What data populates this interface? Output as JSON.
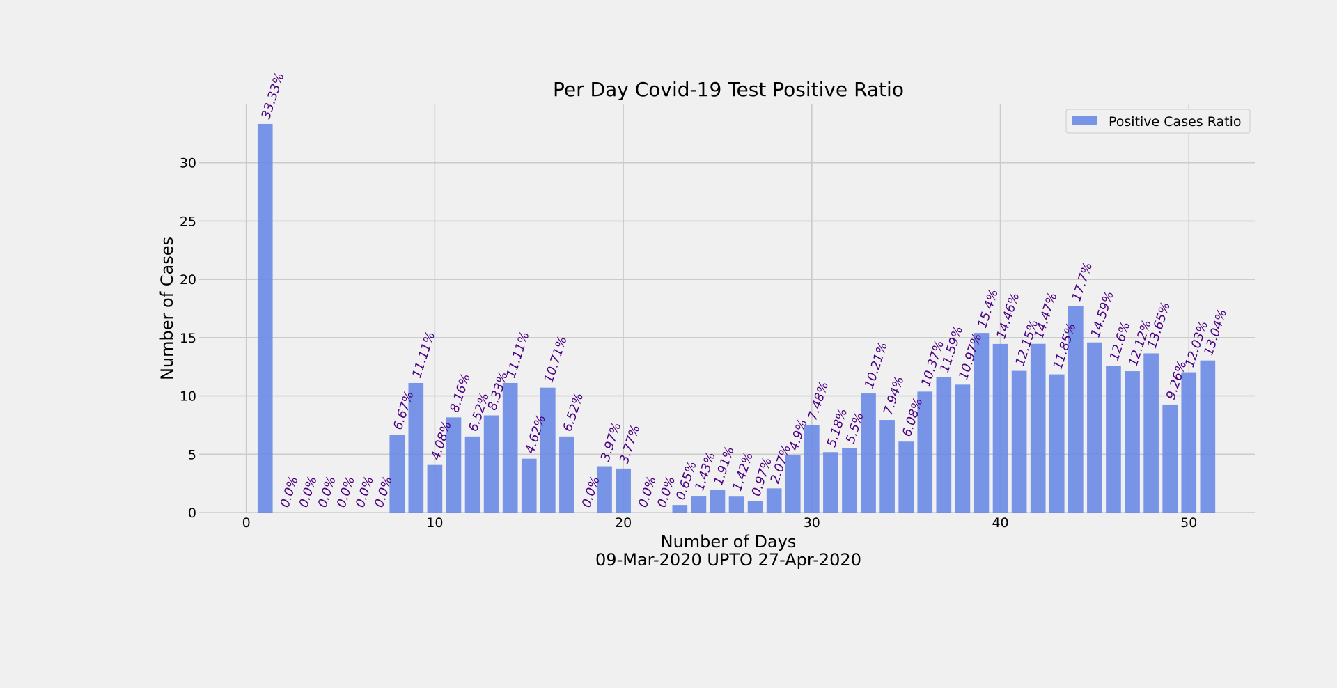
{
  "chart_data": {
    "type": "bar",
    "title": "Per Day Covid-19 Test Positive Ratio",
    "xlabel": "Number of Days",
    "xlabel_sub": "09-Mar-2020 UPTO 27-Apr-2020",
    "ylabel": "Number of Cases",
    "xlim": [
      -2.5,
      53.5
    ],
    "ylim": [
      0,
      35
    ],
    "xticks": [
      0,
      10,
      20,
      30,
      40,
      50
    ],
    "yticks": [
      0,
      5,
      10,
      15,
      20,
      25,
      30
    ],
    "grid": true,
    "legend_position": "top-right",
    "series": [
      {
        "name": "Positive Cases Ratio",
        "color": "#6a8ae6",
        "x": [
          1,
          2,
          3,
          4,
          5,
          6,
          7,
          8,
          9,
          10,
          11,
          12,
          13,
          14,
          15,
          16,
          17,
          18,
          19,
          20,
          21,
          22,
          23,
          24,
          25,
          26,
          27,
          28,
          29,
          30,
          31,
          32,
          33,
          34,
          35,
          36,
          37,
          38,
          39,
          40,
          41,
          42,
          43,
          44,
          45,
          46,
          47,
          48,
          49,
          50,
          51
        ],
        "values": [
          33.33,
          0.0,
          0.0,
          0.0,
          0.0,
          0.0,
          0.0,
          6.67,
          11.11,
          4.08,
          8.16,
          6.52,
          8.33,
          11.11,
          4.62,
          10.71,
          6.52,
          0.0,
          3.97,
          3.77,
          0.0,
          0.0,
          0.65,
          1.43,
          1.91,
          1.42,
          0.97,
          2.07,
          4.9,
          7.48,
          5.18,
          5.5,
          10.21,
          7.94,
          6.08,
          10.37,
          11.59,
          10.97,
          15.4,
          14.46,
          12.15,
          14.47,
          11.85,
          17.7,
          14.59,
          12.6,
          12.12,
          13.65,
          9.26,
          12.03,
          13.04
        ],
        "labels": [
          "33.33%",
          "0.0%",
          "0.0%",
          "0.0%",
          "0.0%",
          "0.0%",
          "0.0%",
          "6.67%",
          "11.11%",
          "4.08%",
          "8.16%",
          "6.52%",
          "8.33%",
          "11.11%",
          "4.62%",
          "10.71%",
          "6.52%",
          "0.0%",
          "3.97%",
          "3.77%",
          "0.0%",
          "0.0%",
          "0.65%",
          "1.43%",
          "1.91%",
          "1.42%",
          "0.97%",
          "2.07%",
          "4.9%",
          "7.48%",
          "5.18%",
          "5.5%",
          "10.21%",
          "7.94%",
          "6.08%",
          "10.37%",
          "11.59%",
          "10.97%",
          "15.4%",
          "14.46%",
          "12.15%",
          "14.47%",
          "11.85%",
          "17.7%",
          "14.59%",
          "12.6%",
          "12.12%",
          "13.65%",
          "9.26%",
          "12.03%",
          "13.04%"
        ]
      }
    ],
    "label_color": "#4b0082"
  }
}
